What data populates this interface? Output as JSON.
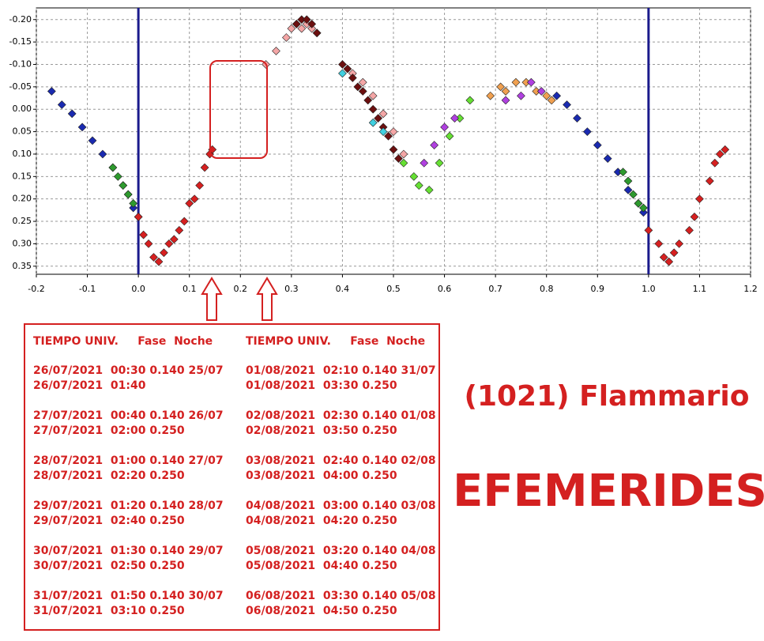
{
  "chart_data": {
    "type": "scatter",
    "title": "(1021) Flammario",
    "subtitle": "EFEMERIDES",
    "xlim": [
      -0.2,
      1.2
    ],
    "ylim": [
      -0.226,
      0.368
    ],
    "invert_y": true,
    "grid": true,
    "xticks": [
      -0.2,
      -0.1,
      {
        "value": 0,
        "label": "0.0"
      },
      0.1,
      0.2,
      0.3,
      0.4,
      0.5,
      0.6,
      0.7,
      0.8,
      0.9,
      {
        "value": 1,
        "label": "1.0"
      },
      1.1,
      1.2
    ],
    "yticks": [
      {
        "value": -0.2,
        "label": "-0.20"
      },
      {
        "value": -0.15,
        "label": "-0.15"
      },
      {
        "value": -0.1,
        "label": "-0.10"
      },
      {
        "value": -0.05,
        "label": "-0.05"
      },
      {
        "value": 0,
        "label": "0.00"
      },
      {
        "value": 0.05,
        "label": "0.05"
      },
      {
        "value": 0.1,
        "label": "0.10"
      },
      {
        "value": 0.15,
        "label": "0.15"
      },
      {
        "value": 0.2,
        "label": "0.20"
      },
      {
        "value": 0.25,
        "label": "0.25"
      },
      {
        "value": 0.3,
        "label": "0.30"
      },
      {
        "value": 0.35,
        "label": "0.35"
      }
    ],
    "vlines": [
      0,
      1
    ],
    "vline_color": "#1a1a8c",
    "series": [
      {
        "color": "#1a2ab0",
        "x": [
          -0.17,
          -0.15,
          -0.13,
          -0.11,
          -0.09,
          -0.07,
          -0.05,
          -0.03,
          -0.02,
          -0.01,
          0.0,
          0.82,
          0.84,
          0.86,
          0.88,
          0.9,
          0.92,
          0.94,
          0.96,
          0.98,
          0.99
        ],
        "values": [
          -0.04,
          -0.01,
          0.01,
          0.04,
          0.07,
          0.1,
          0.13,
          0.17,
          0.19,
          0.22,
          0.24,
          -0.03,
          -0.01,
          0.02,
          0.05,
          0.08,
          0.11,
          0.14,
          0.18,
          0.21,
          0.23
        ]
      },
      {
        "color": "#2e9a2e",
        "x": [
          -0.05,
          -0.04,
          -0.03,
          -0.02,
          -0.01,
          0.95,
          0.96,
          0.97,
          0.98,
          0.99
        ],
        "values": [
          0.13,
          0.15,
          0.17,
          0.19,
          0.21,
          0.14,
          0.16,
          0.19,
          0.21,
          0.22
        ]
      },
      {
        "color": "#66e033",
        "x": [
          0.52,
          0.54,
          0.55,
          0.57,
          0.59,
          0.61,
          0.63,
          0.65
        ],
        "values": [
          0.12,
          0.15,
          0.17,
          0.18,
          0.12,
          0.06,
          0.02,
          -0.02
        ]
      },
      {
        "color": "#d62020",
        "x": [
          0.0,
          0.01,
          0.02,
          0.03,
          0.04,
          0.05,
          0.06,
          0.07,
          0.08,
          0.09,
          0.1,
          0.11,
          0.12,
          0.13,
          0.14,
          0.145,
          1.0,
          1.02,
          1.03,
          1.04,
          1.05,
          1.06,
          1.08,
          1.09,
          1.1,
          1.12,
          1.13,
          1.14,
          1.15
        ],
        "values": [
          0.24,
          0.28,
          0.3,
          0.33,
          0.34,
          0.32,
          0.3,
          0.29,
          0.27,
          0.25,
          0.21,
          0.2,
          0.17,
          0.13,
          0.1,
          0.09,
          0.27,
          0.3,
          0.33,
          0.34,
          0.32,
          0.3,
          0.27,
          0.24,
          0.2,
          0.16,
          0.12,
          0.1,
          0.09
        ]
      },
      {
        "color": "#f4a6a6",
        "x": [
          0.25,
          0.27,
          0.29,
          0.3,
          0.31,
          0.32,
          0.33,
          0.34,
          0.35,
          0.42,
          0.44,
          0.46,
          0.48,
          0.5,
          0.52
        ],
        "values": [
          -0.1,
          -0.13,
          -0.16,
          -0.18,
          -0.19,
          -0.18,
          -0.19,
          -0.18,
          -0.17,
          -0.08,
          -0.06,
          -0.03,
          0.01,
          0.05,
          0.1
        ]
      },
      {
        "color": "#6b0f0f",
        "x": [
          0.31,
          0.32,
          0.33,
          0.34,
          0.35,
          0.4,
          0.41,
          0.42,
          0.43,
          0.44,
          0.45,
          0.46,
          0.47,
          0.48,
          0.49,
          0.5,
          0.51
        ],
        "values": [
          -0.19,
          -0.2,
          -0.2,
          -0.19,
          -0.17,
          -0.1,
          -0.09,
          -0.07,
          -0.05,
          -0.04,
          -0.02,
          0.0,
          0.02,
          0.04,
          0.06,
          0.09,
          0.11
        ]
      },
      {
        "color": "#f0a050",
        "x": [
          0.69,
          0.71,
          0.72,
          0.74,
          0.76,
          0.78,
          0.8,
          0.81
        ],
        "values": [
          -0.03,
          -0.05,
          -0.04,
          -0.06,
          -0.06,
          -0.04,
          -0.03,
          -0.02
        ]
      },
      {
        "color": "#b040e0",
        "x": [
          0.56,
          0.58,
          0.6,
          0.62,
          0.72,
          0.75,
          0.77,
          0.79
        ],
        "values": [
          0.12,
          0.08,
          0.04,
          0.02,
          -0.02,
          -0.03,
          -0.06,
          -0.04
        ]
      },
      {
        "color": "#40d0e0",
        "x": [
          0.4,
          0.46,
          0.48
        ],
        "values": [
          -0.08,
          0.03,
          0.05
        ]
      }
    ]
  },
  "table": {
    "columns": [
      {
        "header": "TIEMPO UNIV.     Fase  Noche",
        "blocks": [
          [
            "26/07/2021  00:30 0.140 25/07",
            "26/07/2021  01:40"
          ],
          [
            "27/07/2021  00:40 0.140 26/07",
            "27/07/2021  02:00 0.250"
          ],
          [
            "28/07/2021  01:00 0.140 27/07",
            "28/07/2021  02:20 0.250"
          ],
          [
            "29/07/2021  01:20 0.140 28/07",
            "29/07/2021  02:40 0.250"
          ],
          [
            "30/07/2021  01:30 0.140 29/07",
            "30/07/2021  02:50 0.250"
          ],
          [
            "31/07/2021  01:50 0.140 30/07",
            "31/07/2021  03:10 0.250"
          ]
        ]
      },
      {
        "header": "TIEMPO UNIV.     Fase  Noche",
        "blocks": [
          [
            "01/08/2021  02:10 0.140 31/07",
            "01/08/2021  03:30 0.250"
          ],
          [
            "02/08/2021  02:30 0.140 01/08",
            "02/08/2021  03:50 0.250"
          ],
          [
            "03/08/2021  02:40 0.140 02/08",
            "03/08/2021  04:00 0.250"
          ],
          [
            "04/08/2021  03:00 0.140 03/08",
            "04/08/2021  04:20 0.250"
          ],
          [
            "05/08/2021  03:20 0.140 04/08",
            "05/08/2021  04:40 0.250"
          ],
          [
            "06/08/2021  03:30 0.140 05/08",
            "06/08/2021  04:50 0.250"
          ]
        ]
      }
    ]
  }
}
